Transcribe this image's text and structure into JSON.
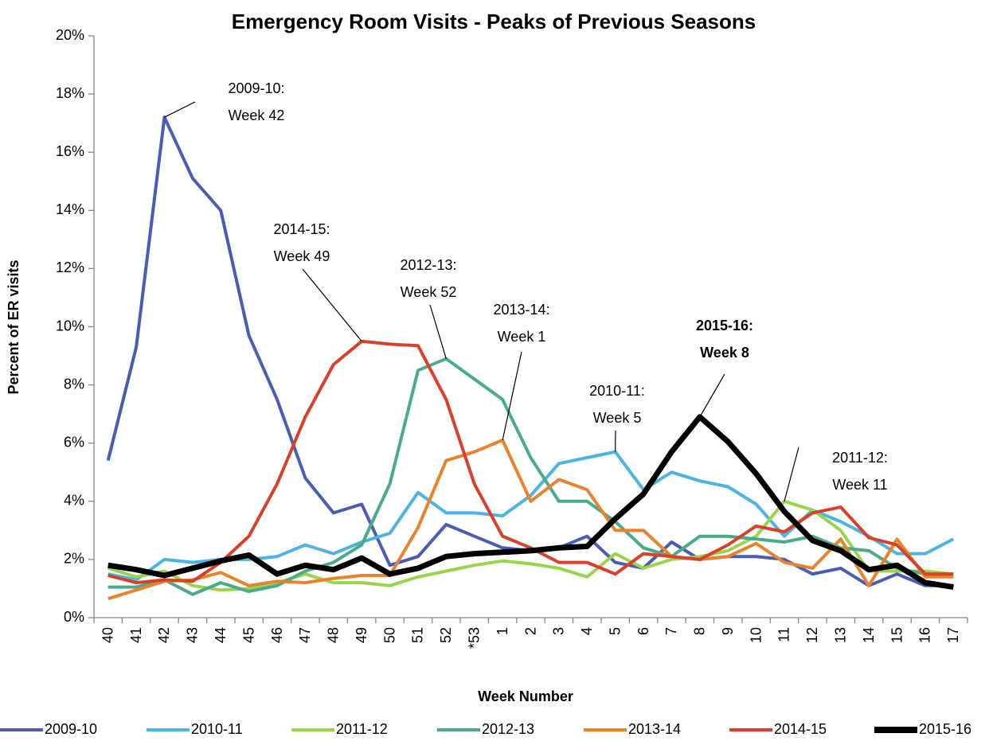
{
  "chart_data": {
    "type": "line",
    "title": "Emergency Room Visits - Peaks of Previous Seasons",
    "x_label": "Week Number",
    "y_label": "Percent of ER visits",
    "categories": [
      "40",
      "41",
      "42",
      "43",
      "44",
      "45",
      "46",
      "47",
      "48",
      "49",
      "50",
      "51",
      "52",
      "*53",
      "1",
      "2",
      "3",
      "4",
      "5",
      "6",
      "7",
      "8",
      "9",
      "10",
      "11",
      "12",
      "13",
      "14",
      "15",
      "16",
      "17"
    ],
    "ylim": [
      0,
      20
    ],
    "yticks": [
      {
        "value": 0,
        "label": "0%"
      },
      {
        "value": 2,
        "label": "2%"
      },
      {
        "value": 4,
        "label": "4%"
      },
      {
        "value": 6,
        "label": "6%"
      },
      {
        "value": 8,
        "label": "8%"
      },
      {
        "value": 10,
        "label": "10%"
      },
      {
        "value": 12,
        "label": "12%"
      },
      {
        "value": 14,
        "label": "14%"
      },
      {
        "value": 16,
        "label": "16%"
      },
      {
        "value": 18,
        "label": "18%"
      },
      {
        "value": 20,
        "label": "20%"
      }
    ],
    "grid": false,
    "legend": "bottom",
    "series": [
      {
        "name": "2009-10",
        "color": "#4a5cb4",
        "values": [
          5.4,
          9.3,
          17.2,
          15.1,
          14.0,
          9.7,
          7.5,
          4.8,
          3.6,
          3.9,
          1.8,
          2.1,
          3.2,
          2.8,
          2.4,
          2.3,
          2.4,
          2.8,
          1.9,
          1.7,
          2.6,
          2.0,
          2.1,
          2.1,
          2.0,
          1.5,
          1.7,
          1.1,
          1.5,
          1.1,
          1.1
        ]
      },
      {
        "name": "2010-11",
        "color": "#4bb4e0",
        "values": [
          1.5,
          1.3,
          2.0,
          1.9,
          2.0,
          2.0,
          2.1,
          2.5,
          2.2,
          2.6,
          2.9,
          4.3,
          3.6,
          3.6,
          3.5,
          4.2,
          5.3,
          5.5,
          5.7,
          4.4,
          5.0,
          4.7,
          4.5,
          3.9,
          2.8,
          3.7,
          3.3,
          2.8,
          2.2,
          2.2,
          2.7
        ]
      },
      {
        "name": "2011-12",
        "color": "#9ad44c",
        "values": [
          1.7,
          1.4,
          1.6,
          1.1,
          0.95,
          1.0,
          1.2,
          1.5,
          1.2,
          1.2,
          1.1,
          1.4,
          1.6,
          1.8,
          1.95,
          1.85,
          1.7,
          1.4,
          2.2,
          1.7,
          2.0,
          2.1,
          2.3,
          2.8,
          4.0,
          3.7,
          3.0,
          1.6,
          1.6,
          1.6,
          1.5
        ]
      },
      {
        "name": "2012-13",
        "color": "#4aaa8c",
        "values": [
          1.05,
          1.05,
          1.3,
          0.8,
          1.2,
          0.9,
          1.1,
          1.6,
          1.9,
          2.5,
          4.6,
          8.5,
          8.9,
          8.2,
          7.5,
          5.5,
          4.0,
          4.0,
          3.3,
          2.4,
          2.1,
          2.8,
          2.8,
          2.7,
          2.6,
          2.8,
          2.4,
          2.3,
          1.7,
          1.5,
          1.5
        ]
      },
      {
        "name": "2013-14",
        "color": "#e8822c",
        "values": [
          0.65,
          0.95,
          1.25,
          1.3,
          1.55,
          1.1,
          1.25,
          1.2,
          1.35,
          1.45,
          1.45,
          3.1,
          5.4,
          5.7,
          6.1,
          4.0,
          4.75,
          4.4,
          3.0,
          3.0,
          2.1,
          2.0,
          2.1,
          2.55,
          1.9,
          1.7,
          2.7,
          1.1,
          2.7,
          1.4,
          1.4
        ]
      },
      {
        "name": "2014-15",
        "color": "#d8402a",
        "values": [
          1.45,
          1.2,
          1.3,
          1.25,
          1.9,
          2.8,
          4.6,
          6.9,
          8.7,
          9.5,
          9.4,
          9.35,
          7.5,
          4.6,
          2.8,
          2.4,
          1.9,
          1.9,
          1.5,
          2.2,
          2.1,
          2.0,
          2.5,
          3.15,
          2.95,
          3.6,
          3.8,
          2.75,
          2.5,
          1.5,
          1.5
        ]
      },
      {
        "name": "2015-16",
        "color": "#000000",
        "values": [
          1.8,
          1.65,
          1.45,
          1.7,
          1.95,
          2.15,
          1.5,
          1.8,
          1.65,
          2.05,
          1.5,
          1.7,
          2.1,
          2.2,
          2.25,
          2.3,
          2.4,
          2.45,
          3.4,
          4.25,
          5.7,
          6.9,
          6.05,
          4.95,
          3.65,
          2.65,
          2.3,
          1.65,
          1.8,
          1.2,
          1.05
        ]
      }
    ],
    "annotations": [
      {
        "lines": [
          "2009-10:",
          "Week 42"
        ]
      },
      {
        "lines": [
          "2014-15:",
          "Week 49"
        ]
      },
      {
        "lines": [
          "2012-13:",
          "Week 52"
        ]
      },
      {
        "lines": [
          "2013-14:",
          "Week 1"
        ]
      },
      {
        "lines": [
          "2015-16:",
          "Week 8"
        ]
      },
      {
        "lines": [
          "2010-11:",
          "Week 5"
        ]
      },
      {
        "lines": [
          "2011-12:",
          "Week 11"
        ]
      }
    ]
  }
}
